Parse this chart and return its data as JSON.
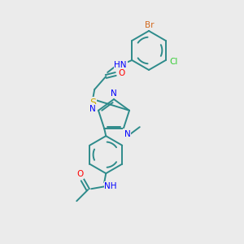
{
  "bg": "#ebebeb",
  "bc": "#2e8b8b",
  "colors": {
    "Br": "#d2691e",
    "Cl": "#32cd32",
    "O": "#ff0000",
    "S": "#ccaa00",
    "N": "#0000ff",
    "C": "#2e8b8b"
  },
  "figsize": [
    3.0,
    3.0
  ],
  "dpi": 100
}
